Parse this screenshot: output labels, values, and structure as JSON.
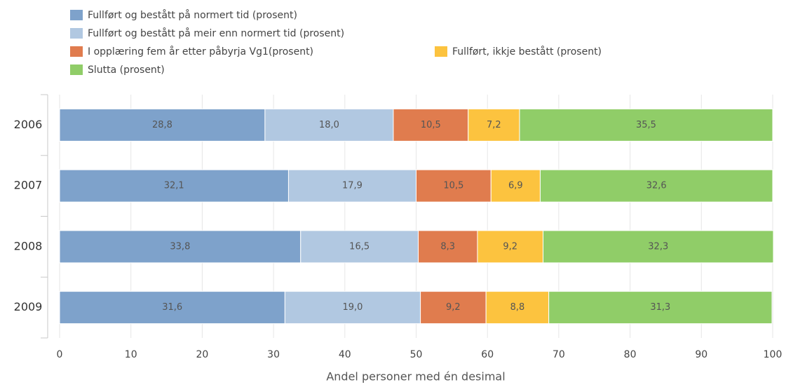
{
  "chart_data": {
    "type": "stacked_barh",
    "xlabel": "Andel personer med én desimal",
    "categories": [
      "2006",
      "2007",
      "2008",
      "2009"
    ],
    "series": [
      {
        "name": "Fullført og bestått på normert tid (prosent)",
        "color": "#7ea2cb",
        "values": [
          28.8,
          32.1,
          33.8,
          31.6
        ],
        "value_labels": [
          "28,8",
          "32,1",
          "33,8",
          "31,6"
        ]
      },
      {
        "name": "Fullført og bestått på meir enn normert tid (prosent)",
        "color": "#b1c8e1",
        "values": [
          18.0,
          17.9,
          16.5,
          19.0
        ],
        "value_labels": [
          "18,0",
          "17,9",
          "16,5",
          "19,0"
        ]
      },
      {
        "name": "I opplæring fem år etter påbyrja Vg1(prosent)",
        "color": "#e07c4e",
        "values": [
          10.5,
          10.5,
          8.3,
          9.2
        ],
        "value_labels": [
          "10,5",
          "10,5",
          "8,3",
          "9,2"
        ]
      },
      {
        "name": "Fullført, ikkje bestått (prosent)",
        "color": "#fcc33f",
        "values": [
          7.2,
          6.9,
          9.2,
          8.8
        ],
        "value_labels": [
          "7,2",
          "6,9",
          "9,2",
          "8,8"
        ]
      },
      {
        "name": "Slutta (prosent)",
        "color": "#90cd68",
        "values": [
          35.5,
          32.6,
          32.3,
          31.3
        ],
        "value_labels": [
          "35,5",
          "32,6",
          "32,3",
          "31,3"
        ]
      }
    ],
    "xlim": [
      0,
      100
    ],
    "xticks": [
      0,
      10,
      20,
      30,
      40,
      50,
      60,
      70,
      80,
      90,
      100
    ],
    "grid": true
  }
}
